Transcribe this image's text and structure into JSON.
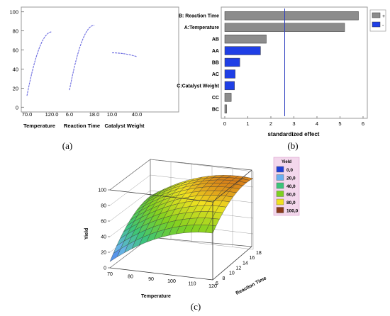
{
  "captions": {
    "a": "(a)",
    "b": "(b)",
    "c": "(c)"
  },
  "colors": {
    "gray_bar": "#8c8c8c",
    "blue_bar": "#1f3fe6",
    "ref_line": "#3040c0",
    "effect_curve": "#6a6ae0"
  },
  "chart_data": [
    {
      "id": "a",
      "type": "line",
      "title": "",
      "ylabel": "",
      "ylim": [
        -5,
        105
      ],
      "y_ticks": [
        "0",
        "20",
        "40",
        "60",
        "80",
        "100"
      ],
      "grid": false,
      "panels": [
        {
          "xlabel": "Temperature",
          "x_ticks": [
            "70.0",
            "120.0"
          ],
          "x": [
            70,
            120
          ],
          "y": [
            12,
            79
          ]
        },
        {
          "xlabel": "Reaction Time",
          "x_ticks": [
            "6.0",
            "18.0"
          ],
          "x": [
            6,
            18
          ],
          "y": [
            18,
            86
          ]
        },
        {
          "xlabel": "Catalyst Weight",
          "x_ticks": [
            "10.0",
            "40.0"
          ],
          "x": [
            10,
            40
          ],
          "y": [
            57,
            53
          ]
        }
      ]
    },
    {
      "id": "b",
      "type": "bar",
      "orientation": "horizontal",
      "title": "",
      "xlabel": "standardized effect",
      "ylabel": "",
      "xlim": [
        0,
        6
      ],
      "x_ticks": [
        "0",
        "1",
        "2",
        "3",
        "4",
        "5",
        "6"
      ],
      "reference_line": 2.6,
      "categories": [
        "B: Reaction Time",
        "A:Temperature",
        "AB",
        "AA",
        "BB",
        "AC",
        "C:Catalyst Weight",
        "CC",
        "BC"
      ],
      "values": [
        5.8,
        5.2,
        1.8,
        1.55,
        0.65,
        0.45,
        0.42,
        0.28,
        0.08
      ],
      "signs": [
        "+",
        "+",
        "+",
        "-",
        "-",
        "-",
        "-",
        "+",
        "+"
      ],
      "legend": {
        "position": "top-right",
        "entries": [
          "+",
          "-"
        ]
      }
    },
    {
      "id": "c",
      "type": "surface",
      "title": "",
      "xlabel": "Temperature",
      "ylabel": "Reaction Time",
      "zlabel": "Yield",
      "x_ticks": [
        "70",
        "80",
        "90",
        "100",
        "110",
        "120"
      ],
      "y_ticks": [
        "6",
        "8",
        "10",
        "12",
        "14",
        "16",
        "18"
      ],
      "z_ticks": [
        "0",
        "20",
        "40",
        "60",
        "80",
        "100"
      ],
      "xlim": [
        70,
        120
      ],
      "ylim": [
        6,
        18
      ],
      "zlim": [
        0,
        100
      ],
      "legend": {
        "title": "Yield",
        "position": "right",
        "labels": [
          "0,0",
          "20,0",
          "40,0",
          "60,0",
          "80,0",
          "100,0"
        ],
        "colors": [
          "#1f3fd6",
          "#6ab0f0",
          "#3cc47a",
          "#7ed020",
          "#f0e020",
          "#8b3a1a"
        ]
      }
    }
  ]
}
